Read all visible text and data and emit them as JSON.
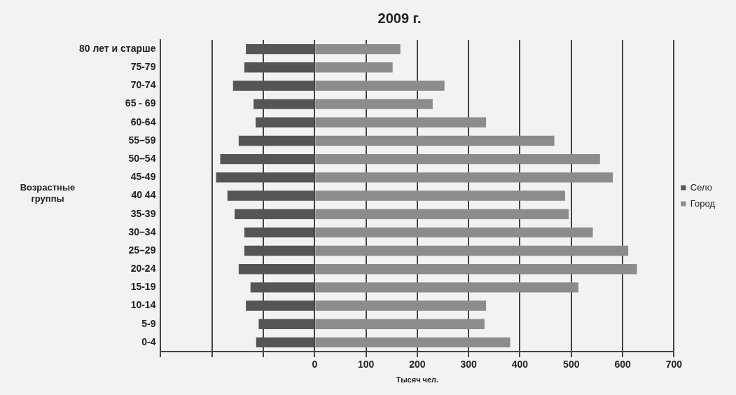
{
  "chart_data": {
    "type": "bar",
    "orientation": "horizontal",
    "stacked": true,
    "title": "2009 г.",
    "xlabel": "Тысяч чел.",
    "ylabel": "Возрастные группы",
    "categories": [
      "80 лет и старше",
      "75-79",
      "70-74",
      "65 - 69",
      "60-64",
      "55–59",
      "50–54",
      "45-49",
      "40 44",
      "35-39",
      "30–34",
      "25–29",
      "20-24",
      "15-19",
      "10-14",
      "5-9",
      "0-4"
    ],
    "series": [
      {
        "name": "Село",
        "color": "#555555",
        "values": [
          -134,
          -137,
          -159,
          -119,
          -115,
          -148,
          -184,
          -192,
          -170,
          -156,
          -137,
          -137,
          -148,
          -125,
          -134,
          -109,
          -114
        ]
      },
      {
        "name": "Город",
        "color": "#8c8c8c",
        "values": [
          167,
          152,
          253,
          230,
          334,
          467,
          556,
          581,
          488,
          495,
          542,
          611,
          628,
          514,
          334,
          331,
          381
        ]
      }
    ],
    "xlim": [
      -300,
      700
    ],
    "xticks": [
      {
        "value": -300,
        "label": null
      },
      {
        "value": -200,
        "label": null
      },
      {
        "value": -100,
        "label": null
      },
      0,
      100,
      200,
      300,
      400,
      500,
      600,
      700
    ],
    "grid": "x",
    "legend": "right"
  }
}
